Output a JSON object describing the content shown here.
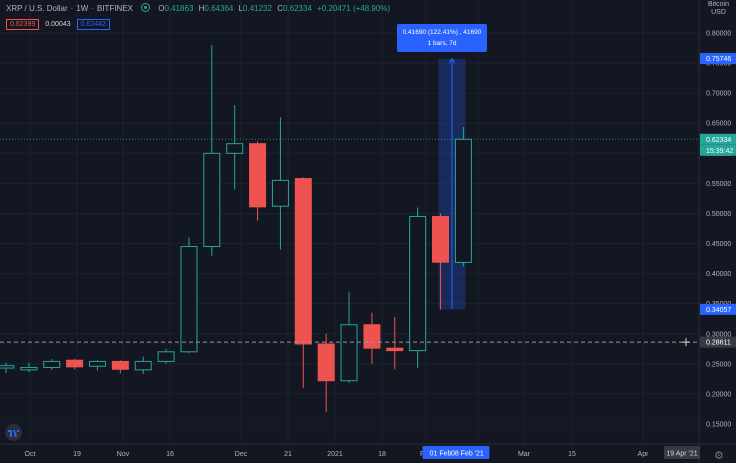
{
  "header": {
    "symbol": "XRP / U.S. Dollar",
    "interval": "1W",
    "exchange": "BITFINEX",
    "ohlc": [
      {
        "key": "O",
        "value": "0.41863"
      },
      {
        "key": "H",
        "value": "0.64364"
      },
      {
        "key": "L",
        "value": "0.41232"
      },
      {
        "key": "C",
        "value": "0.62334"
      }
    ],
    "change": "+0.20471 (+48.90%)",
    "bid": "0.62399",
    "spread": "0.00043",
    "ask": "0.62442"
  },
  "currency_label": [
    "Bitcoin",
    "USD"
  ],
  "measure_tooltip": {
    "line1": "0.41690 (122.41%) , 41690",
    "line2": "1 bars, 7d"
  },
  "colors": {
    "up": "#26a69a",
    "down": "#ef5350",
    "background": "#131722",
    "accent": "#2962ff"
  },
  "icons": {
    "logo": "tradingview-logo-icon",
    "settings": "gear-icon",
    "crosshair": "crosshair-plus-icon"
  },
  "chart_data": {
    "type": "candlestick",
    "y_axis": {
      "ticks": [
        "0.80000",
        "0.75000",
        "0.70000",
        "0.65000",
        "0.60000",
        "0.55000",
        "0.50000",
        "0.45000",
        "0.40000",
        "0.35000",
        "0.30000",
        "0.25000",
        "0.20000",
        "0.15000"
      ],
      "ylim": [
        0.1,
        0.84
      ],
      "price_labels": [
        {
          "value": 0.75746,
          "text": "0.75746",
          "style": "measure"
        },
        {
          "value": 0.62334,
          "text": "0.62334",
          "style": "last"
        },
        {
          "value": 0.62334,
          "text": "15:39:42",
          "style": "countdown"
        },
        {
          "value": 0.34057,
          "text": "0.34057",
          "style": "measure"
        },
        {
          "value": 0.28611,
          "text": "0.28611",
          "style": "crosshair"
        }
      ]
    },
    "x_axis": {
      "ticks": [
        "Oct",
        "19",
        "Nov",
        "16",
        "Dec",
        "21",
        "2021",
        "18",
        "Feb",
        "15",
        "Mar",
        "15",
        "Apr"
      ],
      "range_labels": [
        "01 Feb",
        "08 Feb '21"
      ],
      "end_label": "19 Apr '21"
    },
    "candles": [
      {
        "week": "2020-09-21",
        "open": 0.243,
        "high": 0.252,
        "low": 0.235,
        "close": 0.247
      },
      {
        "week": "2020-09-28",
        "open": 0.24,
        "high": 0.252,
        "low": 0.236,
        "close": 0.244
      },
      {
        "week": "2020-10-05",
        "open": 0.244,
        "high": 0.258,
        "low": 0.24,
        "close": 0.254
      },
      {
        "week": "2020-10-12",
        "open": 0.256,
        "high": 0.258,
        "low": 0.241,
        "close": 0.245
      },
      {
        "week": "2020-10-19",
        "open": 0.246,
        "high": 0.256,
        "low": 0.239,
        "close": 0.254
      },
      {
        "week": "2020-10-26",
        "open": 0.254,
        "high": 0.256,
        "low": 0.234,
        "close": 0.241
      },
      {
        "week": "2020-11-02",
        "open": 0.24,
        "high": 0.262,
        "low": 0.233,
        "close": 0.254
      },
      {
        "week": "2020-11-09",
        "open": 0.254,
        "high": 0.275,
        "low": 0.25,
        "close": 0.27
      },
      {
        "week": "2020-11-16",
        "open": 0.27,
        "high": 0.46,
        "low": 0.268,
        "close": 0.445
      },
      {
        "week": "2020-11-23",
        "open": 0.445,
        "high": 0.78,
        "low": 0.43,
        "close": 0.6
      },
      {
        "week": "2020-11-30",
        "open": 0.6,
        "high": 0.68,
        "low": 0.54,
        "close": 0.616
      },
      {
        "week": "2020-12-07",
        "open": 0.616,
        "high": 0.62,
        "low": 0.488,
        "close": 0.511
      },
      {
        "week": "2020-12-14",
        "open": 0.512,
        "high": 0.66,
        "low": 0.44,
        "close": 0.555
      },
      {
        "week": "2020-12-21",
        "open": 0.558,
        "high": 0.56,
        "low": 0.21,
        "close": 0.283
      },
      {
        "week": "2020-12-28",
        "open": 0.283,
        "high": 0.3,
        "low": 0.17,
        "close": 0.222
      },
      {
        "week": "2021-01-04",
        "open": 0.222,
        "high": 0.37,
        "low": 0.218,
        "close": 0.315
      },
      {
        "week": "2021-01-11",
        "open": 0.315,
        "high": 0.335,
        "low": 0.25,
        "close": 0.276
      },
      {
        "week": "2021-01-18",
        "open": 0.276,
        "high": 0.328,
        "low": 0.241,
        "close": 0.272
      },
      {
        "week": "2021-01-25",
        "open": 0.272,
        "high": 0.51,
        "low": 0.243,
        "close": 0.495
      },
      {
        "week": "2021-02-01",
        "open": 0.495,
        "high": 0.5,
        "low": 0.34,
        "close": 0.419
      },
      {
        "week": "2021-02-08",
        "open": 0.41863,
        "high": 0.64364,
        "low": 0.41232,
        "close": 0.62334
      }
    ],
    "measure_range": {
      "from": 0.34057,
      "to": 0.75746,
      "start_week": "2021-02-01",
      "end_week": "2021-02-08"
    },
    "crosshair_price": 0.28611
  }
}
